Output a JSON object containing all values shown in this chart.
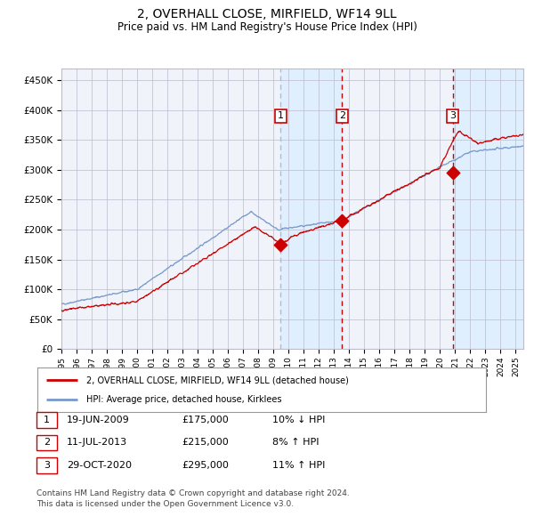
{
  "title": "2, OVERHALL CLOSE, MIRFIELD, WF14 9LL",
  "subtitle": "Price paid vs. HM Land Registry's House Price Index (HPI)",
  "title_fontsize": 10,
  "subtitle_fontsize": 8.5,
  "background_color": "#ffffff",
  "plot_bg_color": "#f0f4fa",
  "grid_color": "#bbbbcc",
  "hpi_color": "#7799cc",
  "price_color": "#cc0000",
  "shade_color": "#ddeeff",
  "vline1_color": "#aabbdd",
  "vline23_color": "#cc0000",
  "ylim": [
    0,
    470000
  ],
  "xlim_start": 1995.0,
  "xlim_end": 2025.5,
  "ytick_values": [
    0,
    50000,
    100000,
    150000,
    200000,
    250000,
    300000,
    350000,
    400000,
    450000
  ],
  "ytick_labels": [
    "£0",
    "£50K",
    "£100K",
    "£150K",
    "£200K",
    "£250K",
    "£300K",
    "£350K",
    "£400K",
    "£450K"
  ],
  "xtick_years": [
    1995,
    1996,
    1997,
    1998,
    1999,
    2000,
    2001,
    2002,
    2003,
    2004,
    2005,
    2006,
    2007,
    2008,
    2009,
    2010,
    2011,
    2012,
    2013,
    2014,
    2015,
    2016,
    2017,
    2018,
    2019,
    2020,
    2021,
    2022,
    2023,
    2024,
    2025
  ],
  "sale1_x": 2009.47,
  "sale1_y": 175000,
  "sale1_label": "1",
  "sale2_x": 2013.53,
  "sale2_y": 215000,
  "sale2_label": "2",
  "sale3_x": 2020.83,
  "sale3_y": 295000,
  "sale3_label": "3",
  "shade_x1": 2009.47,
  "shade_x2": 2013.53,
  "shade2_x1": 2020.83,
  "shade2_x2": 2025.5,
  "legend_line1": "2, OVERHALL CLOSE, MIRFIELD, WF14 9LL (detached house)",
  "legend_line2": "HPI: Average price, detached house, Kirklees",
  "table_rows": [
    [
      "1",
      "19-JUN-2009",
      "£175,000",
      "10% ↓ HPI"
    ],
    [
      "2",
      "11-JUL-2013",
      "£215,000",
      "8% ↑ HPI"
    ],
    [
      "3",
      "29-OCT-2020",
      "£295,000",
      "11% ↑ HPI"
    ]
  ],
  "footnote1": "Contains HM Land Registry data © Crown copyright and database right 2024.",
  "footnote2": "This data is licensed under the Open Government Licence v3.0."
}
